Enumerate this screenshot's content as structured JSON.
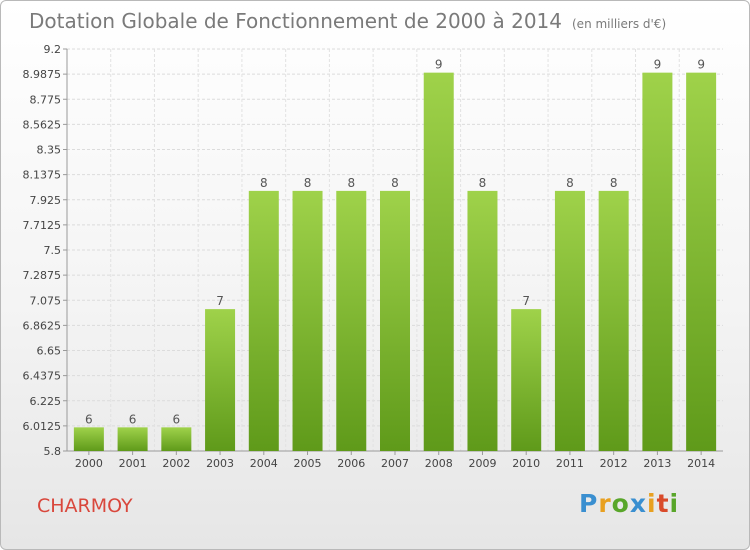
{
  "chart_data": {
    "type": "bar",
    "title": "Dotation Globale de Fonctionnement de 2000 à 2014",
    "unit": "(en milliers d'€)",
    "categories": [
      "2000",
      "2001",
      "2002",
      "2003",
      "2004",
      "2005",
      "2006",
      "2007",
      "2008",
      "2009",
      "2010",
      "2011",
      "2012",
      "2013",
      "2014"
    ],
    "values": [
      6,
      6,
      6,
      7,
      8,
      8,
      8,
      8,
      9,
      8,
      7,
      8,
      8,
      9,
      9
    ],
    "data_labels": [
      "6",
      "6",
      "6",
      "7",
      "8",
      "8",
      "8",
      "8",
      "9",
      "8",
      "7",
      "8",
      "8",
      "9",
      "9"
    ],
    "ylim": [
      5.8,
      9.2
    ],
    "yticks": [
      "5.8",
      "6.0125",
      "6.225",
      "6.4375",
      "6.65",
      "6.8625",
      "7.075",
      "7.2875",
      "7.5",
      "7.7125",
      "7.925",
      "8.1375",
      "8.35",
      "8.5625",
      "8.775",
      "8.9875",
      "9.2"
    ],
    "bar_color_light": "#9fd24a",
    "bar_color_dark": "#5f9a1a",
    "grid": true
  },
  "commune": "CHARMOY",
  "logo": {
    "letters": [
      "P",
      "r",
      "o",
      "x",
      "i",
      "t",
      "i"
    ],
    "colors": [
      "#3a8fd0",
      "#e8a020",
      "#59a62a",
      "#3a8fd0",
      "#e8a020",
      "#d94a2a",
      "#59a62a"
    ]
  }
}
